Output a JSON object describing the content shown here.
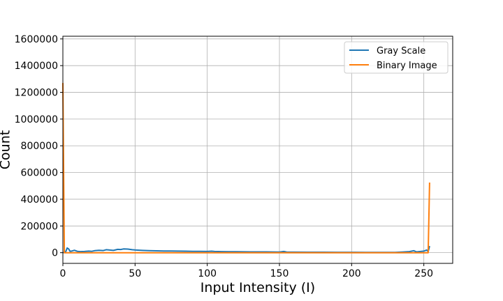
{
  "chart_data": {
    "type": "line",
    "title": "",
    "xlabel": "Input Intensity (I)",
    "ylabel": "Count",
    "xlim": [
      0,
      270
    ],
    "ylim": [
      -80000,
      1620000
    ],
    "xticks": [
      0,
      50,
      100,
      150,
      200,
      250
    ],
    "xtick_labels": [
      "0",
      "50",
      "100",
      "150",
      "200",
      "250"
    ],
    "yticks": [
      0,
      200000,
      400000,
      600000,
      800000,
      1000000,
      1200000,
      1400000,
      1600000
    ],
    "ytick_labels": [
      "0",
      "200000",
      "400000",
      "600000",
      "800000",
      "1000000",
      "1200000",
      "1400000",
      "1600000"
    ],
    "grid": true,
    "legend_position": "top-right",
    "series": [
      {
        "name": "Gray Scale",
        "color": "#1f77b4",
        "x": [
          0,
          1,
          2,
          3,
          4,
          5,
          6,
          8,
          10,
          12,
          15,
          18,
          20,
          22,
          25,
          28,
          30,
          32,
          35,
          38,
          40,
          42,
          45,
          48,
          50,
          55,
          60,
          65,
          70,
          75,
          80,
          85,
          90,
          95,
          100,
          103,
          105,
          110,
          115,
          120,
          125,
          130,
          135,
          140,
          145,
          150,
          153,
          155,
          160,
          170,
          180,
          190,
          200,
          210,
          220,
          230,
          235,
          240,
          243,
          245,
          248,
          250,
          252,
          253,
          254
        ],
        "y": [
          0,
          2000,
          8000,
          35000,
          28000,
          10000,
          12000,
          18000,
          10000,
          8000,
          9000,
          12000,
          10000,
          15000,
          18000,
          16000,
          22000,
          20000,
          17000,
          25000,
          24000,
          28000,
          27000,
          22000,
          20000,
          17000,
          15000,
          14000,
          13000,
          12500,
          12000,
          11000,
          10000,
          9500,
          9000,
          11000,
          9000,
          8000,
          7500,
          7000,
          6500,
          6000,
          6000,
          6000,
          5500,
          5000,
          9000,
          5000,
          4000,
          3500,
          3500,
          3000,
          3000,
          2500,
          2500,
          2500,
          5000,
          8000,
          15000,
          6000,
          9000,
          12000,
          20000,
          8000,
          50000
        ]
      },
      {
        "name": "Binary Image",
        "color": "#ff7f0e",
        "x": [
          0,
          1,
          2,
          50,
          100,
          150,
          200,
          250,
          253,
          254
        ],
        "y": [
          1270000,
          0,
          0,
          0,
          0,
          0,
          0,
          0,
          0,
          525000
        ]
      }
    ]
  }
}
